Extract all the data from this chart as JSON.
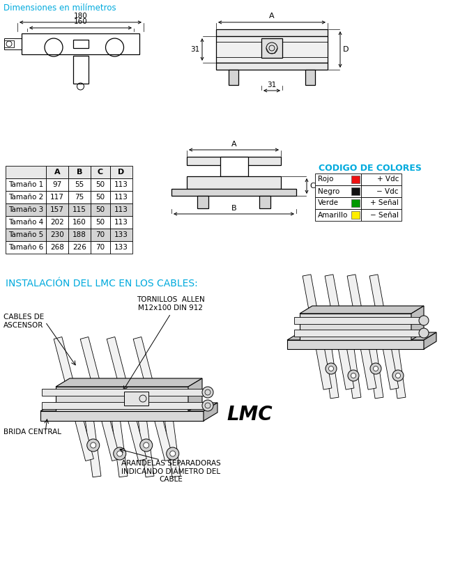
{
  "title": "Dimensiones en milímetros",
  "title_color": "#00AADD",
  "table_headers": [
    "A",
    "B",
    "C",
    "D"
  ],
  "table_rows": [
    [
      "Tamaño 1",
      "97",
      "55",
      "50",
      "113"
    ],
    [
      "Tamaño 2",
      "117",
      "75",
      "50",
      "113"
    ],
    [
      "Tamaño 3",
      "157",
      "115",
      "50",
      "113"
    ],
    [
      "Tamaño 4",
      "202",
      "160",
      "50",
      "113"
    ],
    [
      "Tamaño 5",
      "230",
      "188",
      "70",
      "133"
    ],
    [
      "Tamaño 6",
      "268",
      "226",
      "70",
      "133"
    ]
  ],
  "highlight_rows": [
    2,
    4
  ],
  "codigo_title": "CODIGO DE COLORES",
  "codigo_title_color": "#00AADD",
  "color_rows": [
    {
      "name": "Rojo",
      "color": "#EE1111",
      "label": "+ Vdc"
    },
    {
      "name": "Negro",
      "color": "#111111",
      "label": "− Vdc"
    },
    {
      "name": "Verde",
      "color": "#009900",
      "label": "+ Señal"
    },
    {
      "name": "Amarillo",
      "color": "#FFEE00",
      "label": "− Señal"
    }
  ],
  "instalacion_title": "INSTALACIÓN DEL LMC EN LOS CABLES:",
  "instalacion_color": "#00AADD",
  "tornillos_label": "TORNILLOS  ALLEN\nM12x100 DIN 912",
  "cables_label": "CABLES DE\nASCENSOR",
  "arandelas_label": "ARANDELAS SEPARADORAS\nINDICANDO DIÁMETRO DEL\nCABLE",
  "brida_label": "BRIDA CENTRAL",
  "lmc_label": "LMC"
}
